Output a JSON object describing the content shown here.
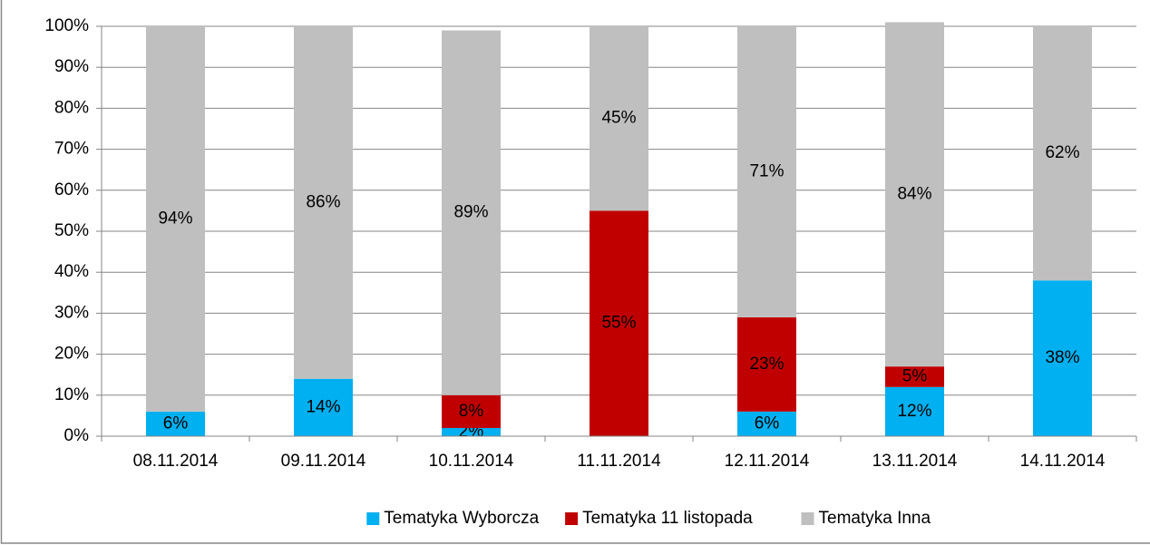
{
  "chart_data": {
    "type": "stacked_bar_100",
    "categories": [
      "08.11.2014",
      "09.11.2014",
      "10.11.2014",
      "11.11.2014",
      "12.11.2014",
      "13.11.2014",
      "14.11.2014"
    ],
    "series": [
      {
        "name": "Tematyka Wyborcza",
        "color": "#00b0f0",
        "values": [
          6,
          14,
          2,
          null,
          6,
          12,
          38
        ],
        "value_labels": [
          "6%",
          "14%",
          "2%",
          null,
          "6%",
          "12%",
          "38%"
        ]
      },
      {
        "name": "Tematyka 11 listopada",
        "color": "#c00000",
        "values": [
          null,
          null,
          8,
          55,
          23,
          5,
          null
        ],
        "value_labels": [
          null,
          null,
          "8%",
          "55%",
          "23%",
          "5%",
          null
        ]
      },
      {
        "name": "Tematyka Inna",
        "color": "#bfbfbf",
        "values": [
          94,
          86,
          89,
          45,
          71,
          84,
          62
        ],
        "value_labels": [
          "94%",
          "86%",
          "89%",
          "45%",
          "71%",
          "84%",
          "62%"
        ]
      }
    ],
    "ylim": [
      0,
      100
    ],
    "yticks": [
      {
        "value": 0,
        "label": "0%"
      },
      {
        "value": 10,
        "label": "10%"
      },
      {
        "value": 20,
        "label": "20%"
      },
      {
        "value": 30,
        "label": "30%"
      },
      {
        "value": 40,
        "label": "40%"
      },
      {
        "value": 50,
        "label": "50%"
      },
      {
        "value": 60,
        "label": "60%"
      },
      {
        "value": 70,
        "label": "70%"
      },
      {
        "value": 80,
        "label": "80%"
      },
      {
        "value": 90,
        "label": "90%"
      },
      {
        "value": 100,
        "label": "100%"
      }
    ],
    "grid": true,
    "legend": "bottom"
  }
}
